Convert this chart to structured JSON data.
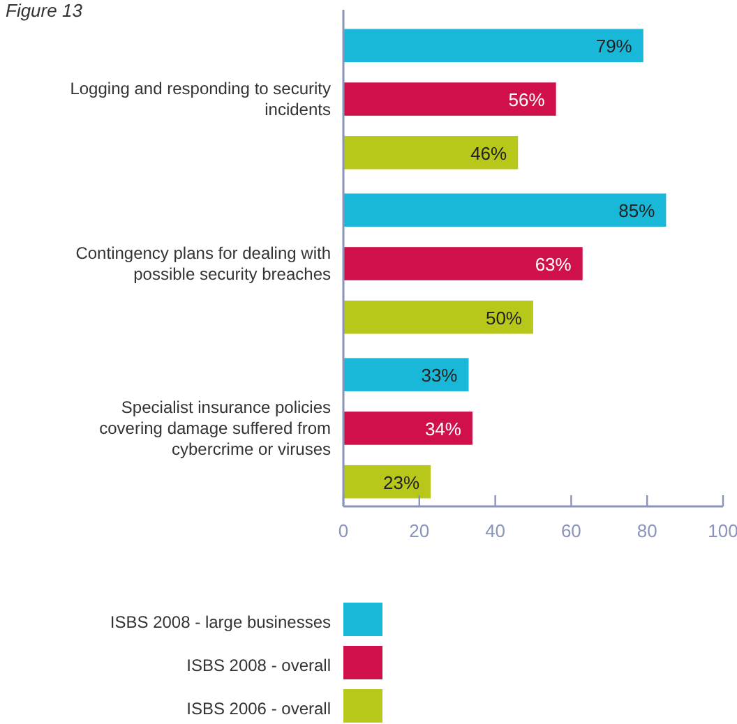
{
  "chart_data": {
    "type": "bar",
    "orientation": "horizontal",
    "title": "Figure 13",
    "categories": [
      "Logging and responding to security incidents",
      "Contingency plans for dealing with possible security breaches",
      "Specialist insurance policies covering damage suffered from cybercrime or viruses"
    ],
    "series": [
      {
        "name": "ISBS 2008 - large businesses",
        "color": "#1ab8d8",
        "values": [
          79,
          85,
          33
        ],
        "value_labels": [
          "79%",
          "85%",
          "33%"
        ]
      },
      {
        "name": "ISBS 2008 - overall",
        "color": "#d0104a",
        "values": [
          56,
          63,
          34
        ],
        "value_labels": [
          "56%",
          "63%",
          "34%"
        ]
      },
      {
        "name": "ISBS 2006 - overall",
        "color": "#b8c81a",
        "values": [
          46,
          50,
          23
        ],
        "value_labels": [
          "46%",
          "50%",
          "23%"
        ]
      }
    ],
    "xlim": [
      0,
      100
    ],
    "xticks": [
      0,
      20,
      40,
      60,
      80,
      100
    ],
    "grid": false,
    "legend": "bottom"
  }
}
